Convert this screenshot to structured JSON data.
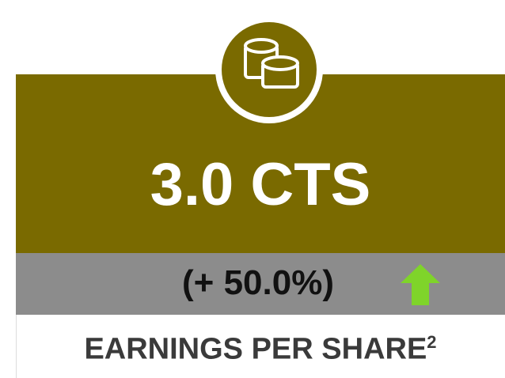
{
  "card": {
    "value": "3.0 CTS",
    "change": "(+ 50.0%)",
    "label": "EARNINGS PER SHARE",
    "footnote": "2"
  }
}
